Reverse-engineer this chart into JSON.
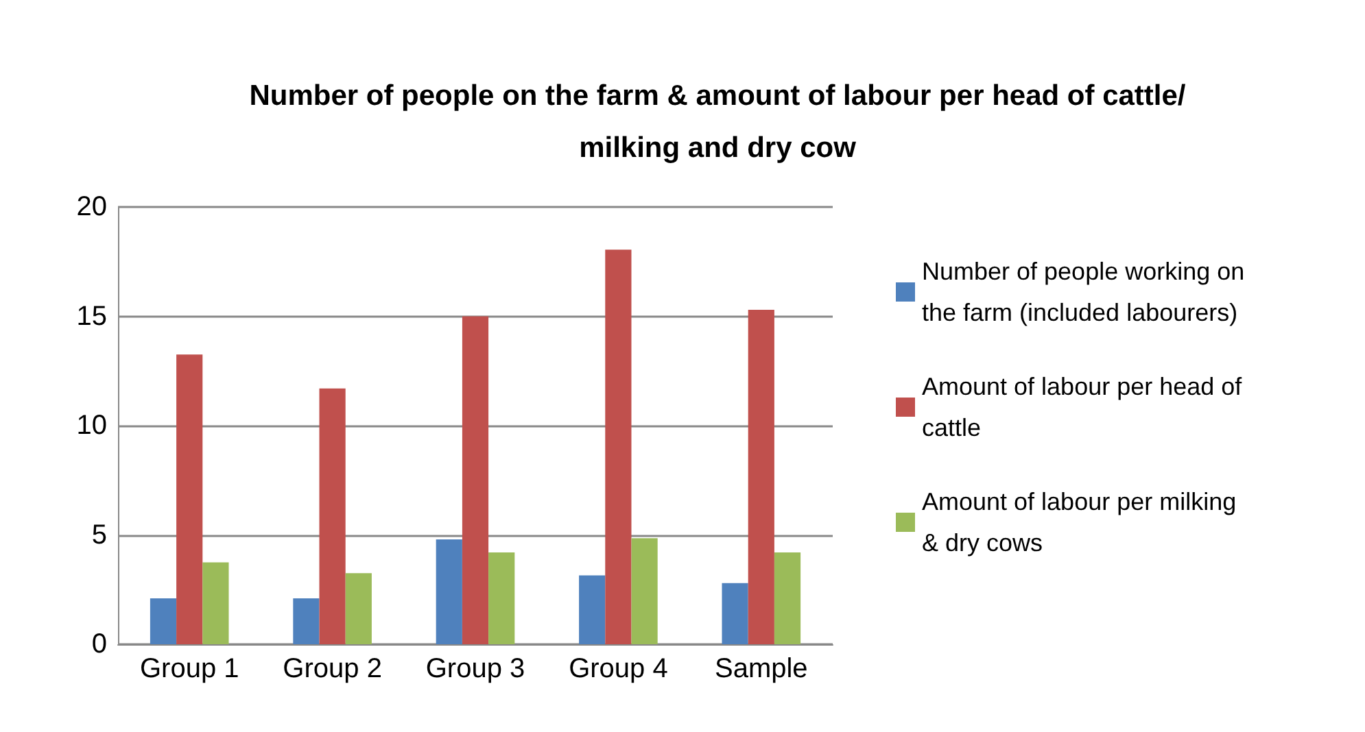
{
  "chart_data": {
    "type": "bar",
    "title": "Number of people on the farm & amount of labour per head of cattle/milking and dry cow",
    "categories": [
      "Group 1",
      "Group 2",
      "Group 3",
      "Group 4",
      "Sample"
    ],
    "series": [
      {
        "name": "Number of people working on the farm (included labourers)",
        "color": "#4f81bd",
        "values": [
          2.1,
          2.1,
          4.8,
          3.15,
          2.8
        ]
      },
      {
        "name": "Amount of labour per head of cattle",
        "color": "#c0504d",
        "values": [
          13.25,
          11.7,
          15,
          18.05,
          15.3
        ]
      },
      {
        "name": "Amount of labour per milking & dry cows",
        "color": "#9bbb59",
        "values": [
          3.75,
          3.25,
          4.2,
          4.85,
          4.2
        ]
      }
    ],
    "ylim": [
      0,
      20
    ],
    "yticks": [
      0,
      5,
      10,
      15,
      20
    ],
    "grid": "y",
    "legend": "right"
  }
}
